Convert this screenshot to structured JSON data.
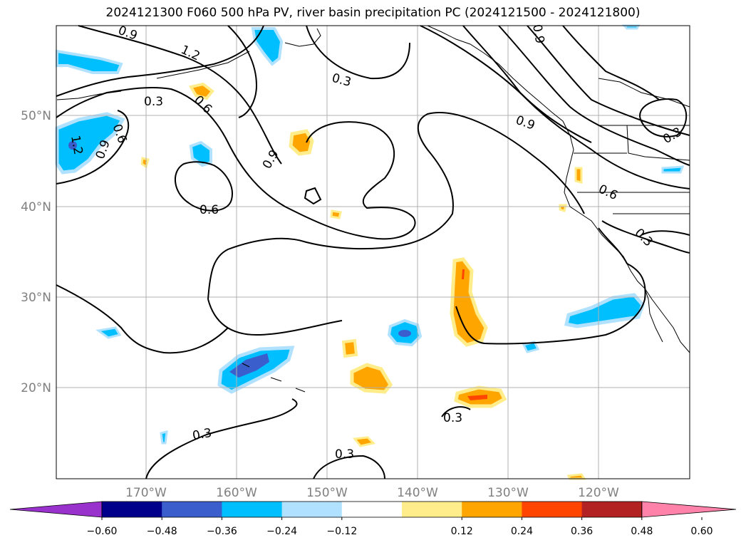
{
  "title": "2024121300 F060 500 hPa PV, river basin precipitation PC (2024121500 - 2024121800)",
  "lat_labels": [
    "50°N",
    "40°N",
    "30°N",
    "20°N"
  ],
  "lon_labels": [
    "170°W",
    "160°W",
    "150°W",
    "140°W",
    "130°W",
    "120°W"
  ],
  "colorbar": {
    "ticks": [
      "−0.60",
      "−0.48",
      "−0.36",
      "−0.24",
      "−0.12",
      "0.12",
      "0.24",
      "0.36",
      "0.48",
      "0.60"
    ],
    "colors": [
      "#9932cc",
      "#00008b",
      "#3a5fcd",
      "#00bfff",
      "#b0e2ff",
      "#ffffff",
      "#ffec8b",
      "#ffa500",
      "#ff4500",
      "#b22222",
      "#ff82ab"
    ]
  },
  "contour_labels": [
    "0.9",
    "1.2",
    "0.3",
    "0.6",
    "0.3",
    "0.9",
    "0.6",
    "0.9",
    "0.6",
    "0.3",
    "0.3",
    "0.6",
    "0.9",
    "1.2",
    "0.9",
    "0.3",
    "0.3",
    "0.3"
  ],
  "colors": {
    "contour": "#000000",
    "grid": "#b0b0b0",
    "coast": "#000000",
    "axis_text": "#808080"
  }
}
